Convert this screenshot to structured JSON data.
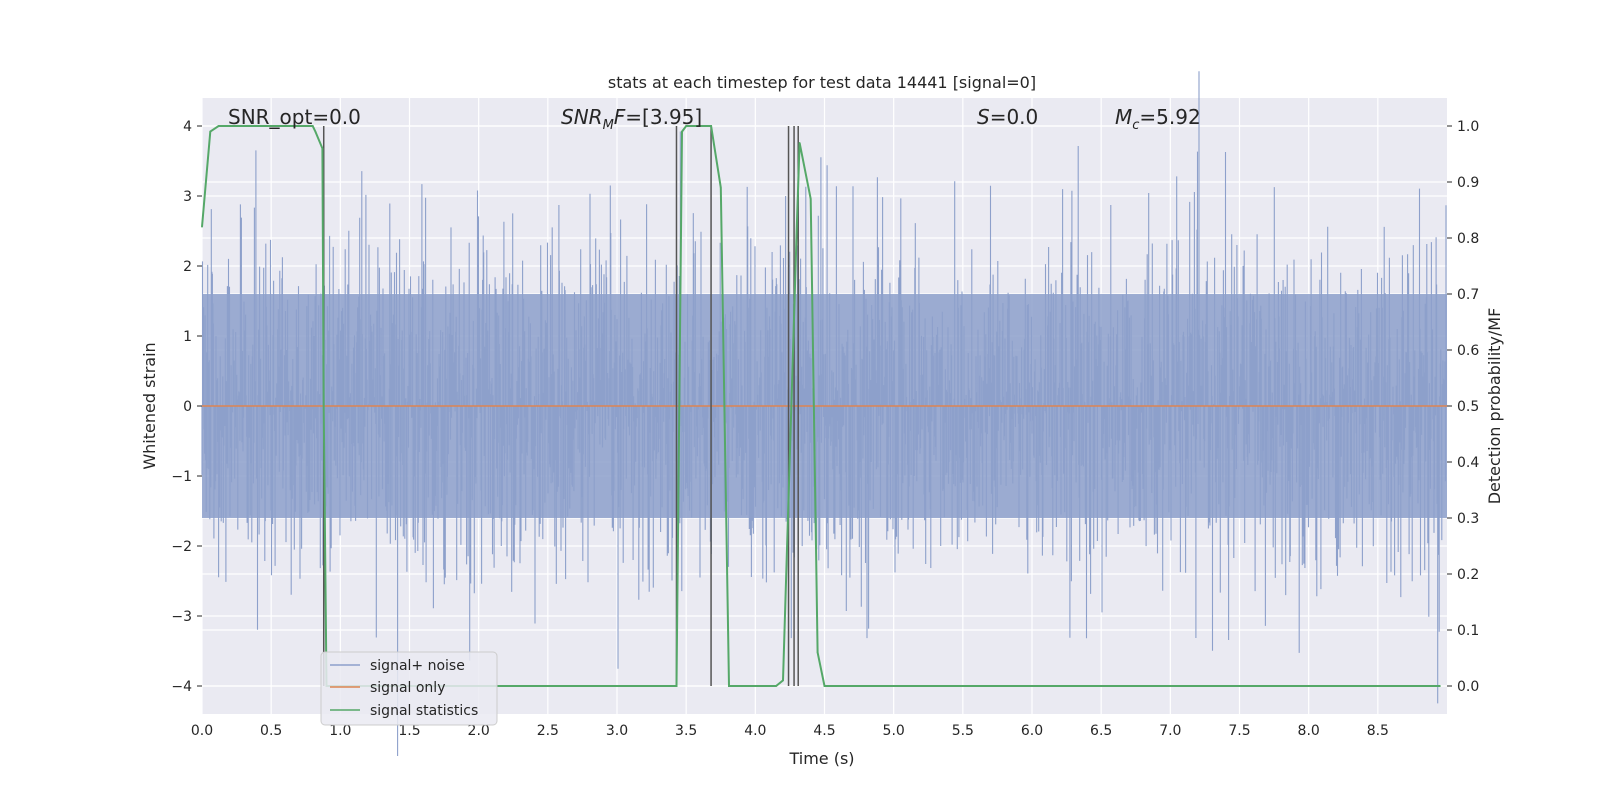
{
  "chart_data": {
    "type": "line",
    "title": "stats at each timestep for test data 14441 [signal=0]",
    "xlabel": "Time (s)",
    "ylabel": "Whitened strain",
    "y2label": "Detection probability/MF",
    "xlim": [
      0.0,
      9.0
    ],
    "ylim": [
      -4.4,
      4.4
    ],
    "y2lim": [
      -0.05,
      1.05
    ],
    "xticks": [
      "0.0",
      "0.5",
      "1.0",
      "1.5",
      "2.0",
      "2.5",
      "3.0",
      "3.5",
      "4.0",
      "4.5",
      "5.0",
      "5.5",
      "6.0",
      "6.5",
      "7.0",
      "7.5",
      "8.0",
      "8.5"
    ],
    "yticks": [
      "−4",
      "−3",
      "−2",
      "−1",
      "0",
      "1",
      "2",
      "3",
      "4"
    ],
    "y2ticks": [
      "0.0",
      "0.1",
      "0.2",
      "0.3",
      "0.4",
      "0.5",
      "0.6",
      "0.7",
      "0.8",
      "0.9",
      "1.0"
    ],
    "grid": true,
    "legend_position": "lower-left",
    "colors": {
      "background": "#eaeaf2",
      "grid": "#ffffff",
      "noise": "#8da0cb",
      "signal_only": "#dd8452",
      "statistics": "#55a868",
      "vlines": "#555555"
    },
    "annotations": {
      "snr_opt": "SNR_opt=0.0",
      "snr_mf_main": "SNR",
      "snr_mf_sub": "M",
      "snr_mf_tail": "F",
      "snr_mf_value": "=[3.95]",
      "s_var": "S",
      "s_value": "=0.0",
      "mc_var": "M",
      "mc_sub": "c",
      "mc_value": "=5.92"
    },
    "series": [
      {
        "name": "signal+ noise",
        "kind": "noise",
        "band_typical": [
          -1.6,
          1.6
        ],
        "peak_range": [
          -4.0,
          4.0
        ]
      },
      {
        "name": "signal only",
        "x": [
          0.0,
          9.0
        ],
        "y": [
          0.0,
          0.0
        ]
      },
      {
        "name": "signal statistics",
        "axis": "right",
        "x": [
          0.0,
          0.06,
          0.12,
          0.2,
          0.3,
          0.4,
          0.5,
          0.6,
          0.7,
          0.8,
          0.82,
          0.87,
          0.88,
          0.9,
          0.95,
          1.0,
          1.5,
          2.0,
          2.5,
          3.0,
          3.38,
          3.43,
          3.47,
          3.5,
          3.58,
          3.68,
          3.75,
          3.81,
          3.9,
          4.0,
          4.15,
          4.2,
          4.3,
          4.32,
          4.4,
          4.45,
          4.5,
          4.6,
          5.0,
          5.5,
          6.0,
          6.5,
          7.0,
          7.5,
          8.0,
          8.5,
          8.95
        ],
        "y": [
          0.82,
          0.99,
          1.0,
          1.0,
          1.0,
          1.0,
          1.0,
          1.0,
          1.0,
          1.0,
          0.99,
          0.96,
          0.5,
          0.0,
          0.0,
          0.0,
          0.0,
          0.0,
          0.0,
          0.0,
          0.0,
          0.0,
          0.99,
          1.0,
          1.0,
          1.0,
          0.89,
          0.0,
          0.0,
          0.0,
          0.0,
          0.01,
          0.82,
          0.97,
          0.87,
          0.06,
          0.0,
          0.0,
          0.0,
          0.0,
          0.0,
          0.0,
          0.0,
          0.0,
          0.0,
          0.0,
          0.0
        ]
      }
    ],
    "vlines_x": [
      0.88,
      3.43,
      3.68,
      4.24,
      4.28,
      4.31
    ]
  }
}
